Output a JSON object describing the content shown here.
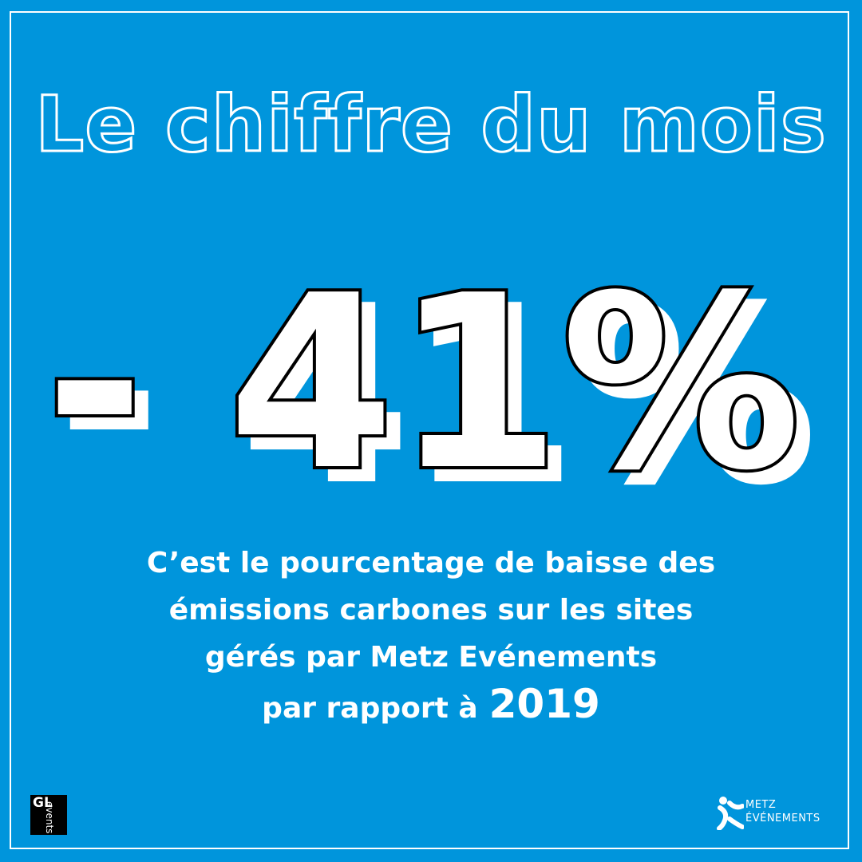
{
  "headline": "Le chiffre du mois",
  "big_number": "- 41%",
  "caption": {
    "line1": "C’est le pourcentage de baisse des",
    "line2": "émissions carbones sur les sites",
    "line3": "gérés par Metz Evénements",
    "line4_prefix": "par rapport à",
    "line4_year": "2019"
  },
  "logos": {
    "gl_events_top": "GL",
    "gl_events_bottom": "events",
    "metz_line1": "METZ",
    "metz_line2": "ÉVÉNEMENTS"
  },
  "colors": {
    "background": "#0095dc",
    "text": "#ffffff",
    "outline": "#000000"
  }
}
